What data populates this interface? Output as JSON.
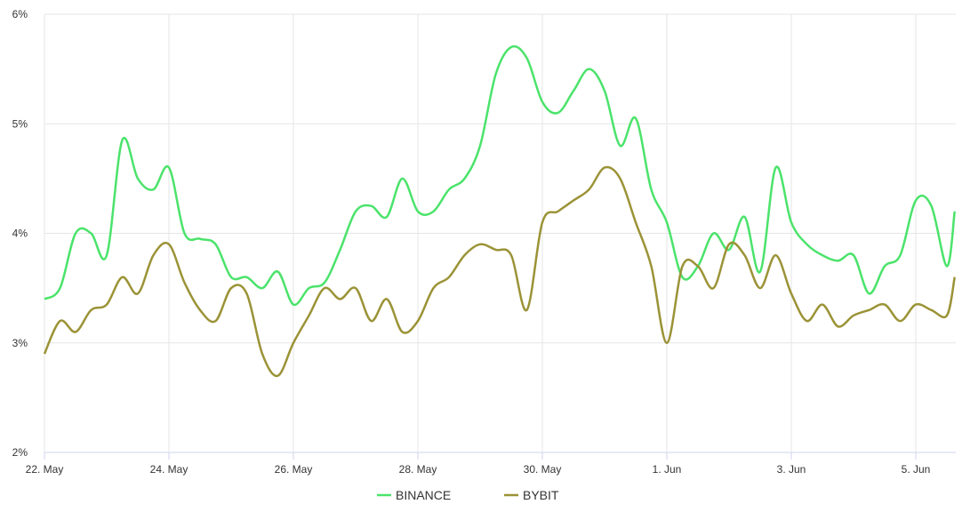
{
  "chart_data": {
    "type": "line",
    "title": "",
    "xlabel": "",
    "ylabel": "",
    "ylim": [
      2,
      6
    ],
    "y_ticks": [
      "2%",
      "3%",
      "4%",
      "5%",
      "6%"
    ],
    "y_tick_values": [
      2,
      3,
      4,
      5,
      6
    ],
    "x_ticks": [
      "22. May",
      "24. May",
      "26. May",
      "28. May",
      "30. May",
      "1. Jun",
      "3. Jun",
      "5. Jun"
    ],
    "x_tick_dates": [
      "05-22",
      "05-24",
      "05-26",
      "05-28",
      "05-30",
      "06-01",
      "06-03",
      "06-05"
    ],
    "x_range": [
      "05-22 00:00",
      "05-05 15:00"
    ],
    "grid": true,
    "legend_placement": "bottom",
    "x": [
      "05-22 00:00",
      "05-22 06:00",
      "05-22 12:00",
      "05-22 18:00",
      "05-23 00:00",
      "05-23 06:00",
      "05-23 12:00",
      "05-23 18:00",
      "05-24 00:00",
      "05-24 06:00",
      "05-24 12:00",
      "05-24 18:00",
      "05-25 00:00",
      "05-25 06:00",
      "05-25 12:00",
      "05-25 18:00",
      "05-26 00:00",
      "05-26 06:00",
      "05-26 12:00",
      "05-26 18:00",
      "05-27 00:00",
      "05-27 06:00",
      "05-27 12:00",
      "05-27 18:00",
      "05-28 00:00",
      "05-28 06:00",
      "05-28 12:00",
      "05-28 18:00",
      "05-29 00:00",
      "05-29 06:00",
      "05-29 12:00",
      "05-29 18:00",
      "05-30 00:00",
      "05-30 06:00",
      "05-30 12:00",
      "05-30 18:00",
      "05-31 00:00",
      "05-31 06:00",
      "05-31 12:00",
      "05-31 18:00",
      "06-01 00:00",
      "06-01 06:00",
      "06-01 12:00",
      "06-01 18:00",
      "06-02 00:00",
      "06-02 06:00",
      "06-02 12:00",
      "06-02 18:00",
      "06-03 00:00",
      "06-03 06:00",
      "06-03 12:00",
      "06-03 18:00",
      "06-04 00:00",
      "06-04 06:00",
      "06-04 12:00",
      "06-04 18:00",
      "06-05 00:00",
      "06-05 06:00",
      "06-05 12:00",
      "06-05 15:00"
    ],
    "series": [
      {
        "name": "BINANCE",
        "color": "#4be36b",
        "values": [
          3.4,
          3.5,
          4.0,
          4.0,
          3.8,
          4.85,
          4.5,
          4.4,
          4.6,
          4.0,
          3.95,
          3.9,
          3.6,
          3.6,
          3.5,
          3.65,
          3.35,
          3.5,
          3.55,
          3.85,
          4.2,
          4.25,
          4.15,
          4.5,
          4.2,
          4.2,
          4.4,
          4.5,
          4.8,
          5.45,
          5.7,
          5.6,
          5.2,
          5.1,
          5.3,
          5.5,
          5.3,
          4.8,
          5.05,
          4.4,
          4.1,
          3.6,
          3.7,
          4.0,
          3.85,
          4.15,
          3.65,
          4.6,
          4.1,
          3.9,
          3.8,
          3.75,
          3.8,
          3.45,
          3.7,
          3.8,
          4.3,
          4.25,
          3.7,
          4.2
        ]
      },
      {
        "name": "BYBIT",
        "color": "#9b9337",
        "values": [
          2.9,
          3.2,
          3.1,
          3.3,
          3.35,
          3.6,
          3.45,
          3.8,
          3.9,
          3.55,
          3.3,
          3.2,
          3.5,
          3.45,
          2.9,
          2.7,
          3.0,
          3.25,
          3.5,
          3.4,
          3.5,
          3.2,
          3.4,
          3.1,
          3.2,
          3.5,
          3.6,
          3.8,
          3.9,
          3.85,
          3.8,
          3.3,
          4.1,
          4.2,
          4.3,
          4.4,
          4.6,
          4.5,
          4.1,
          3.7,
          3.0,
          3.7,
          3.7,
          3.5,
          3.9,
          3.8,
          3.5,
          3.8,
          3.45,
          3.2,
          3.35,
          3.15,
          3.25,
          3.3,
          3.35,
          3.2,
          3.35,
          3.3,
          3.25,
          3.6
        ]
      }
    ]
  }
}
